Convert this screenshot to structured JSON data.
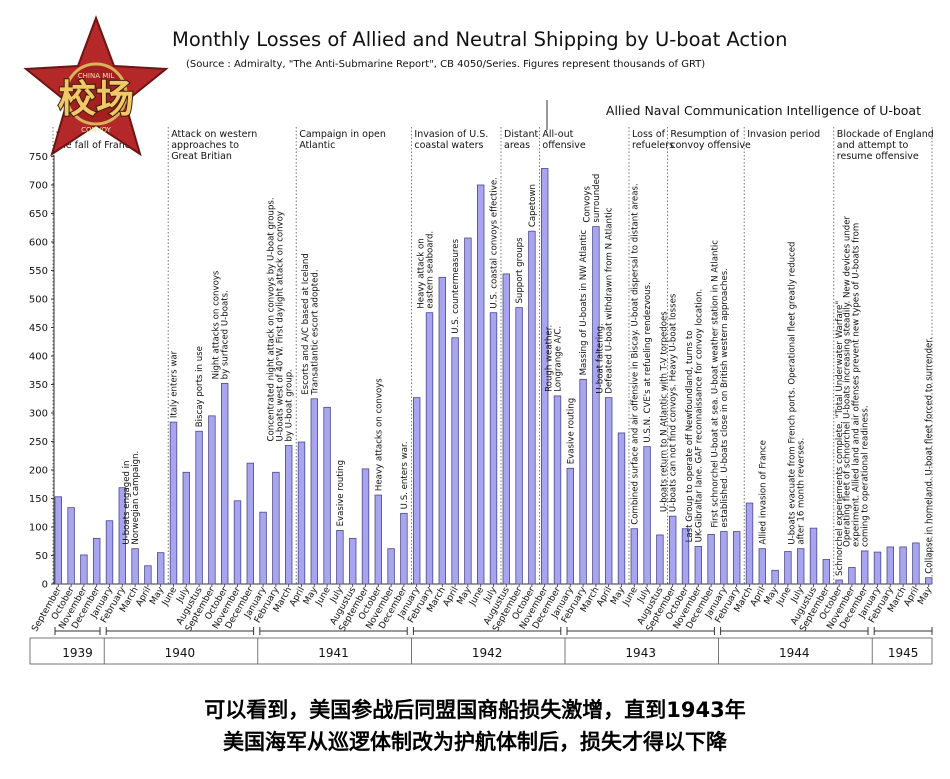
{
  "header": {
    "title": "Monthly Losses of Allied and Neutral Shipping by U-boat Action",
    "subtitle": "(Source : Admiralty, \"The Anti-Submarine Report\", CB 4050/Series. Figures represent thousands of GRT)"
  },
  "logo": {
    "text_top": "CHINA MIL",
    "text_main": "校场",
    "text_bottom": "CONVOY"
  },
  "caption": {
    "line1": "可以看到，美国参战后同盟国商船损失激增，直到1943年",
    "line2": "美国海军从巡逻体制改为护航体制后，损失才得以下降"
  },
  "colors": {
    "bar_fill": "#a9a4f0",
    "bar_stroke": "#4a4a8a",
    "axis": "#333333",
    "caption": "#000000"
  },
  "chart_data": {
    "type": "bar",
    "ylim": [
      0,
      750
    ],
    "yticks": [
      0,
      50,
      100,
      150,
      200,
      250,
      300,
      350,
      400,
      450,
      500,
      550,
      600,
      650,
      700,
      750
    ],
    "months": [
      "September",
      "October",
      "November",
      "December",
      "January",
      "February",
      "March",
      "April",
      "May",
      "June",
      "July",
      "Augustus",
      "September",
      "October",
      "November",
      "December",
      "January",
      "February",
      "March",
      "April",
      "May",
      "June",
      "July",
      "Augustus",
      "September",
      "October",
      "November",
      "December",
      "January",
      "February",
      "March",
      "April",
      "May",
      "June",
      "July",
      "Augustus",
      "September",
      "October",
      "November",
      "December",
      "January",
      "February",
      "March",
      "April",
      "May",
      "June",
      "July",
      "Augustus",
      "September",
      "October",
      "November",
      "December",
      "January",
      "February",
      "March",
      "April",
      "May",
      "June",
      "July",
      "Augustus",
      "September",
      "October",
      "November",
      "December",
      "January",
      "February",
      "March",
      "April",
      "May"
    ],
    "values": [
      153,
      134,
      51,
      80,
      111,
      169,
      62,
      32,
      55,
      284,
      196,
      268,
      295,
      352,
      146,
      212,
      126,
      196,
      243,
      249,
      325,
      310,
      94,
      80,
      202,
      156,
      62,
      124,
      327,
      476,
      538,
      432,
      607,
      700,
      476,
      544,
      485,
      619,
      729,
      330,
      203,
      359,
      627,
      327,
      265,
      97,
      241,
      86,
      119,
      97,
      66,
      87,
      92,
      92,
      142,
      62,
      24,
      57,
      62,
      98,
      43,
      7,
      29,
      58,
      56,
      65,
      65,
      72,
      11
    ],
    "years": [
      {
        "label": "1939",
        "start": 0,
        "end": 3
      },
      {
        "label": "1940",
        "start": 4,
        "end": 15
      },
      {
        "label": "1941",
        "start": 16,
        "end": 27
      },
      {
        "label": "1942",
        "start": 28,
        "end": 39
      },
      {
        "label": "1943",
        "start": 40,
        "end": 51
      },
      {
        "label": "1944",
        "start": 52,
        "end": 63
      },
      {
        "label": "1945",
        "start": 64,
        "end": 68
      }
    ],
    "phase_banner": "Allied Naval Communication Intelligence of U-boat",
    "phases": [
      {
        "lines": [
          "war",
          "the fall of France"
        ],
        "start": 0
      },
      {
        "lines": [
          "Attack on western",
          "approaches to",
          "Great Britian"
        ],
        "start": 9
      },
      {
        "lines": [
          "Campaign in open",
          "Atlantic"
        ],
        "start": 19
      },
      {
        "lines": [
          "Invasion of U.S.",
          "coastal waters"
        ],
        "start": 28
      },
      {
        "lines": [
          "Distant",
          "areas"
        ],
        "start": 35
      },
      {
        "lines": [
          "All-out",
          "offensive"
        ],
        "start": 38
      },
      {
        "lines": [
          "Loss of",
          "refuelers"
        ],
        "start": 45
      },
      {
        "lines": [
          "Resumption of",
          "convoy offensive"
        ],
        "start": 48
      },
      {
        "lines": [
          "Invasion period"
        ],
        "start": 54
      },
      {
        "lines": [
          "Blockade of England",
          "and attempt to",
          "resume offensive"
        ],
        "start": 61
      }
    ],
    "annotations": [
      {
        "bar": 6,
        "lines": [
          "U-boats engaged in",
          "Norwegian campaign."
        ]
      },
      {
        "bar": 9,
        "lines": [
          "Italy enters war"
        ]
      },
      {
        "bar": 11,
        "lines": [
          "Biscay ports in use"
        ]
      },
      {
        "bar": 13,
        "lines": [
          "Night attacks on convoys",
          "by surfaced U-boats."
        ]
      },
      {
        "bar": 18,
        "lines": [
          "Concentrated night attack on convoys by U-boat groups.",
          "U-boats west of 40°W. First daylight attack on convoy",
          "by U-boat group."
        ]
      },
      {
        "bar": 20,
        "lines": [
          "Escorts and A/C based at Iceland",
          "Transatlantic escort adopted."
        ]
      },
      {
        "bar": 22,
        "lines": [
          "Evasive routing"
        ]
      },
      {
        "bar": 25,
        "lines": [
          "Heavy attacks on convoys"
        ]
      },
      {
        "bar": 27,
        "lines": [
          "U.S. enters war."
        ]
      },
      {
        "bar": 29,
        "lines": [
          "Heavy attack on",
          "eastern seaboard."
        ]
      },
      {
        "bar": 31,
        "lines": [
          "U.S. countermeasures"
        ]
      },
      {
        "bar": 34,
        "lines": [
          "U.S. coastal convoys effective."
        ]
      },
      {
        "bar": 36,
        "lines": [
          "Support groups"
        ]
      },
      {
        "bar": 37,
        "lines": [
          "Capetown"
        ]
      },
      {
        "bar": 39,
        "lines": [
          "Rough weather.",
          "Longrange A/C."
        ]
      },
      {
        "bar": 40,
        "lines": [
          "Evasive routing"
        ]
      },
      {
        "bar": 41,
        "lines": [
          "Massing of U-boats in NW Atlantic"
        ]
      },
      {
        "bar": 42,
        "lines": [
          "Convoys",
          "surrounded"
        ]
      },
      {
        "bar": 43,
        "lines": [
          "U-boat faltering.",
          "Defeated U-boat withdrawn from N Atlantic"
        ]
      },
      {
        "bar": 45,
        "lines": [
          "Combined surface and air offensive in Biscay. U-boat dispersal to distant areas."
        ]
      },
      {
        "bar": 46,
        "lines": [
          "U.S.N. CVE's at refueling rendezvous."
        ]
      },
      {
        "bar": 48,
        "lines": [
          "U-boats return to N Atlantic with T-V torpedoes",
          "U-boats can not find convoys. Heavy U-boat losses"
        ]
      },
      {
        "bar": 50,
        "lines": [
          "Last Group to operate off Newfoundland, turns to",
          "UK-Gibraltar lane. GAF reconnaissance for convoy location."
        ]
      },
      {
        "bar": 52,
        "lines": [
          "First schnorchel U-boat at sea. U-boat weather station in N Atlantic",
          "established. U-boats close in on British western approaches."
        ]
      },
      {
        "bar": 55,
        "lines": [
          "Allied invasion of France"
        ]
      },
      {
        "bar": 58,
        "lines": [
          "U-boats evacuate from French ports. Operational fleet greatly reduced",
          "after 16 month reverses."
        ]
      },
      {
        "bar": 61,
        "lines": [
          "Schnorchel experiements complete. \"Total Underwater Warfare\""
        ]
      },
      {
        "bar": 63,
        "lines": [
          "Operating fleet of schnorchel U-boats increasing steadily. New devices under",
          "experiment. Allied land and air offenses prevent new types of U-boats from",
          "coming to operational readiness."
        ]
      },
      {
        "bar": 68,
        "lines": [
          "Collapse in homeland. U-boat fleet forced to surrender."
        ]
      }
    ]
  }
}
